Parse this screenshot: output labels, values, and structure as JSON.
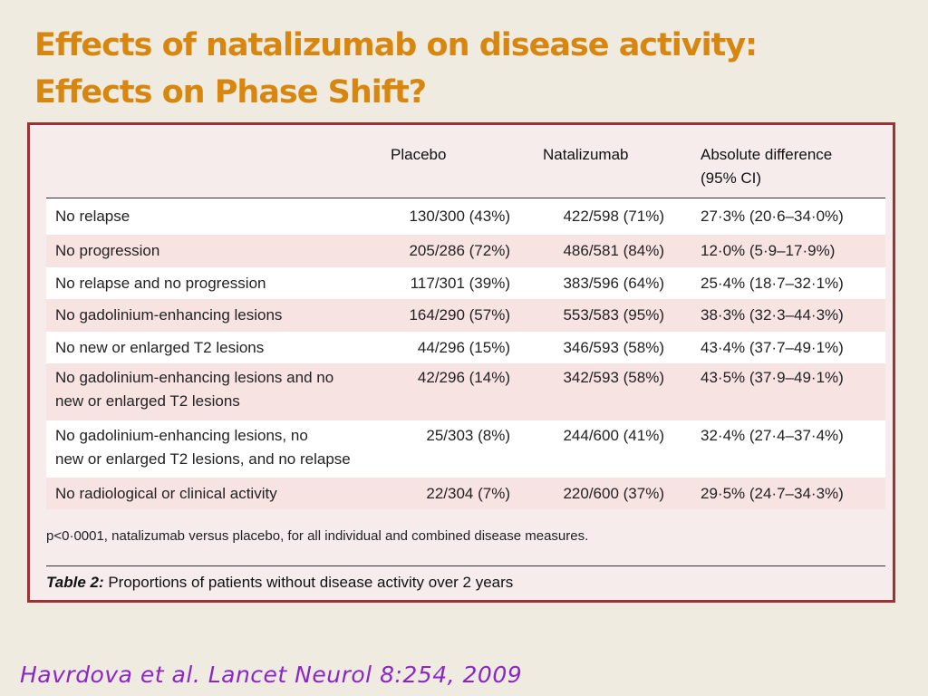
{
  "slide": {
    "title_line1": "Effects of natalizumab on disease activity:",
    "title_line2": "Effects on Phase Shift?"
  },
  "table": {
    "headers": {
      "label": "",
      "placebo": "Placebo",
      "natalizumab": "Natalizumab",
      "difference_line1": "Absolute difference",
      "difference_line2": "(95% CI)"
    },
    "rows": [
      {
        "label": "No relapse",
        "placebo": "130/300 (43%)",
        "natalizumab": "422/598 (71%)",
        "difference": "27·3% (20·6–34·0%)"
      },
      {
        "label": "No progression",
        "placebo": "205/286 (72%)",
        "natalizumab": "486/581 (84%)",
        "difference": "12·0% (5·9–17·9%)"
      },
      {
        "label": "No relapse and no progression",
        "placebo": "117/301 (39%)",
        "natalizumab": "383/596 (64%)",
        "difference": "25·4% (18·7–32·1%)"
      },
      {
        "label": "No gadolinium-enhancing lesions",
        "placebo": "164/290 (57%)",
        "natalizumab": "553/583 (95%)",
        "difference": "38·3% (32·3–44·3%)"
      },
      {
        "label": "No new or enlarged T2 lesions",
        "placebo": "44/296 (15%)",
        "natalizumab": "346/593 (58%)",
        "difference": "43·4% (37·7–49·1%)"
      },
      {
        "label_line1": "No gadolinium-enhancing lesions and no",
        "label_line2": "new or enlarged T2 lesions",
        "placebo": "42/296 (14%)",
        "natalizumab": "342/593 (58%)",
        "difference": "43·5% (37·9–49·1%)"
      },
      {
        "label_line1": "No gadolinium-enhancing lesions, no",
        "label_line2": "new or enlarged T2 lesions, and no relapse",
        "placebo": "25/303 (8%)",
        "natalizumab": "244/600 (41%)",
        "difference": "32·4% (27·4–37·4%)"
      },
      {
        "label": "No radiological or clinical activity",
        "placebo": "22/304 (7%)",
        "natalizumab": "220/600 (37%)",
        "difference": "29·5% (24·7–34·3%)"
      }
    ],
    "footnote": "p<0·0001, natalizumab versus placebo, for all individual and combined disease measures.",
    "caption_label": "Table 2:",
    "caption_text": " Proportions of patients without disease activity over 2 years"
  },
  "citation": "Havrdova et al.  Lancet Neurol  8:254, 2009"
}
